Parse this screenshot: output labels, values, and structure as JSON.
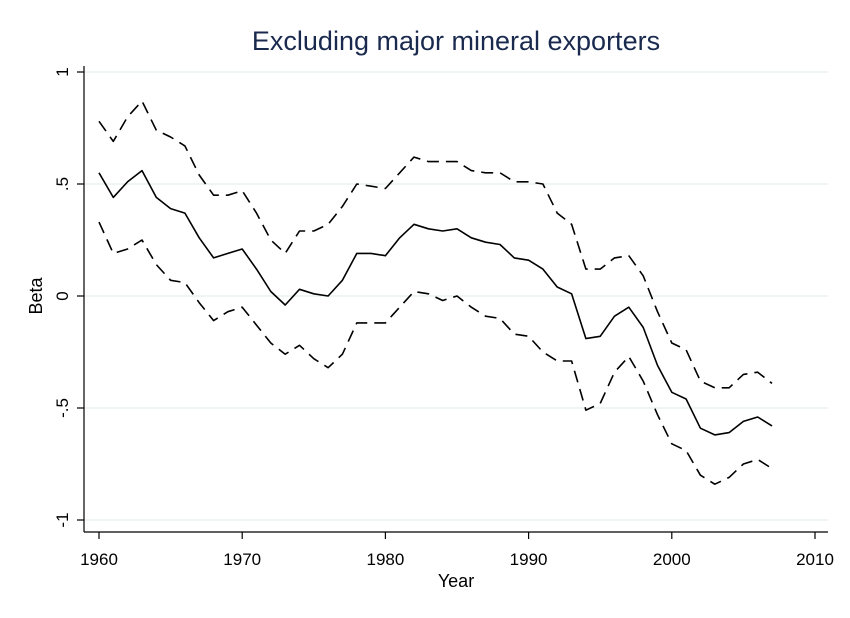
{
  "chart_data": {
    "type": "line",
    "title": "Excluding major mineral exporters",
    "xlabel": "Year",
    "ylabel": "Beta",
    "xlim": [
      1960,
      2010
    ],
    "ylim": [
      -1,
      1
    ],
    "xticks": [
      1960,
      1970,
      1980,
      1990,
      2000,
      2010
    ],
    "yticks": [
      1,
      0.5,
      0,
      -0.5,
      -1
    ],
    "ytick_labels": [
      "1",
      ".5",
      "0",
      "-.5",
      "-1"
    ],
    "grid": true,
    "legend": "none",
    "x": [
      1960,
      1961,
      1962,
      1963,
      1964,
      1965,
      1966,
      1967,
      1968,
      1969,
      1970,
      1971,
      1972,
      1973,
      1974,
      1975,
      1976,
      1977,
      1978,
      1979,
      1980,
      1981,
      1982,
      1983,
      1984,
      1985,
      1986,
      1987,
      1988,
      1989,
      1990,
      1991,
      1992,
      1993,
      1994,
      1995,
      1996,
      1997,
      1998,
      1999,
      2000,
      2001,
      2002,
      2003,
      2004,
      2005,
      2006,
      2007
    ],
    "series": [
      {
        "style": "dashed",
        "values": [
          0.78,
          0.69,
          0.8,
          0.87,
          0.74,
          0.71,
          0.67,
          0.54,
          0.45,
          0.45,
          0.47,
          0.37,
          0.25,
          0.19,
          0.29,
          0.29,
          0.32,
          0.4,
          0.5,
          0.49,
          0.48,
          0.55,
          0.62,
          0.6,
          0.6,
          0.6,
          0.56,
          0.55,
          0.55,
          0.51,
          0.51,
          0.5,
          0.37,
          0.32,
          0.12,
          0.12,
          0.17,
          0.18,
          0.09,
          -0.07,
          -0.21,
          -0.24,
          -0.38,
          -0.41,
          -0.41,
          -0.35,
          -0.34,
          -0.39
        ]
      },
      {
        "style": "solid",
        "values": [
          0.55,
          0.44,
          0.51,
          0.56,
          0.44,
          0.39,
          0.37,
          0.26,
          0.17,
          0.19,
          0.21,
          0.12,
          0.02,
          -0.04,
          0.03,
          0.01,
          0.0,
          0.07,
          0.19,
          0.19,
          0.18,
          0.26,
          0.32,
          0.3,
          0.29,
          0.3,
          0.26,
          0.24,
          0.23,
          0.17,
          0.16,
          0.12,
          0.04,
          0.01,
          -0.19,
          -0.18,
          -0.09,
          -0.05,
          -0.14,
          -0.31,
          -0.43,
          -0.46,
          -0.59,
          -0.62,
          -0.61,
          -0.56,
          -0.54,
          -0.58
        ]
      },
      {
        "style": "dashed",
        "values": [
          0.33,
          0.19,
          0.21,
          0.25,
          0.14,
          0.07,
          0.06,
          -0.03,
          -0.11,
          -0.07,
          -0.05,
          -0.13,
          -0.21,
          -0.26,
          -0.22,
          -0.28,
          -0.32,
          -0.26,
          -0.12,
          -0.12,
          -0.12,
          -0.05,
          0.02,
          0.01,
          -0.02,
          0.0,
          -0.05,
          -0.09,
          -0.1,
          -0.17,
          -0.18,
          -0.25,
          -0.29,
          -0.29,
          -0.51,
          -0.48,
          -0.34,
          -0.27,
          -0.38,
          -0.53,
          -0.66,
          -0.69,
          -0.8,
          -0.84,
          -0.81,
          -0.75,
          -0.73,
          -0.77
        ]
      }
    ]
  }
}
